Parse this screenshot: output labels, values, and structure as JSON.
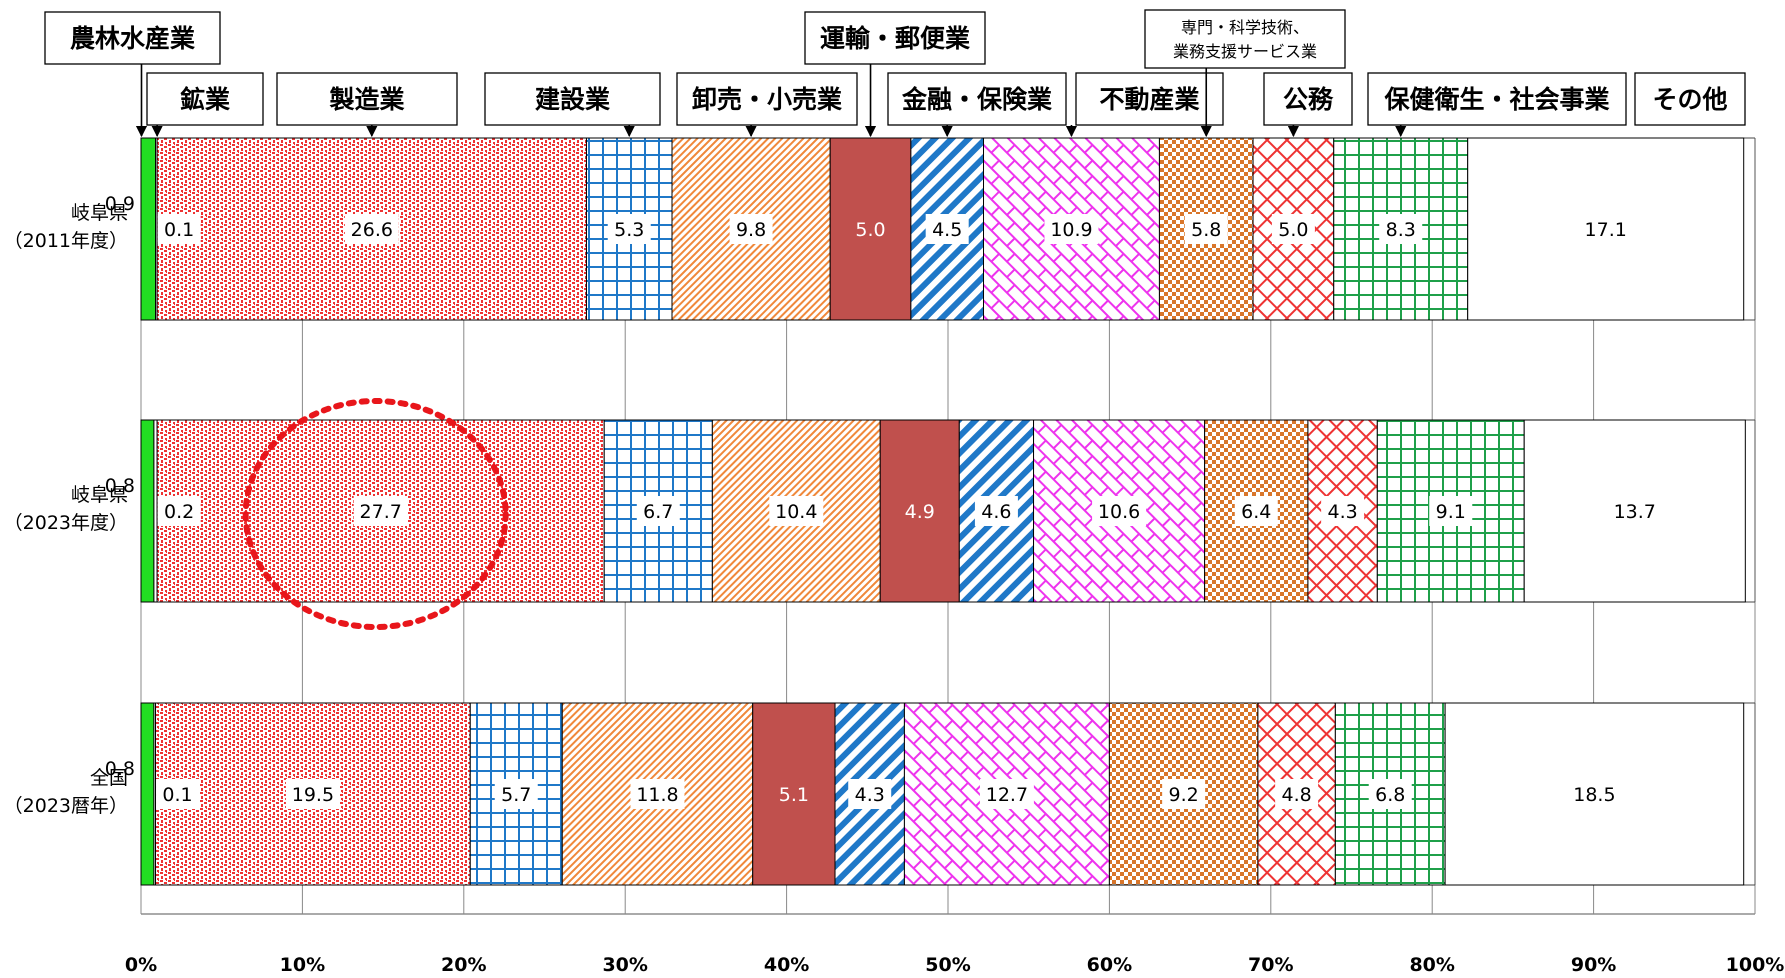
{
  "chart_data": {
    "type": "bar",
    "orientation": "horizontal",
    "stacked": true,
    "xlim": [
      0,
      100
    ],
    "x_ticks": [
      "0%",
      "10%",
      "20%",
      "30%",
      "40%",
      "50%",
      "60%",
      "70%",
      "80%",
      "90%",
      "100%"
    ],
    "categories": [
      [
        "岐阜県",
        "（2011年度）"
      ],
      [
        "岐阜県",
        "（2023年度）"
      ],
      [
        "全国",
        "（2023暦年）"
      ]
    ],
    "series": [
      {
        "name": "農林水産業",
        "values": [
          0.9,
          0.8,
          0.8
        ],
        "color": "#22dd22",
        "pattern": "solid"
      },
      {
        "name": "鉱業",
        "values": [
          0.1,
          0.2,
          0.1
        ],
        "color": "#ffffff",
        "pattern": "none"
      },
      {
        "name": "製造業",
        "values": [
          26.6,
          27.7,
          19.5
        ],
        "color": "#ee3333",
        "pattern": "dots"
      },
      {
        "name": "建設業",
        "values": [
          5.3,
          6.7,
          5.7
        ],
        "color": "#1f78c8",
        "pattern": "grid"
      },
      {
        "name": "卸売・小売業",
        "values": [
          9.8,
          10.4,
          11.8
        ],
        "color": "#f0883a",
        "pattern": "diag"
      },
      {
        "name": "運輸・郵便業",
        "values": [
          5.0,
          4.9,
          5.1
        ],
        "color": "#c0504d",
        "pattern": "solid"
      },
      {
        "name": "金融・保険業",
        "values": [
          4.5,
          4.6,
          4.3
        ],
        "color": "#1f78c8",
        "pattern": "wide-diag"
      },
      {
        "name": "不動産業",
        "values": [
          10.9,
          10.6,
          12.7
        ],
        "color": "#ee33ee",
        "pattern": "brick"
      },
      {
        "name": "専門・科学技術、業務支援サービス業",
        "values": [
          5.8,
          6.4,
          9.2
        ],
        "color": "#d9762a",
        "pattern": "checker"
      },
      {
        "name": "公務",
        "values": [
          5.0,
          4.3,
          4.8
        ],
        "color": "#ee3333",
        "pattern": "cross"
      },
      {
        "name": "保健衛生・社会事業",
        "values": [
          8.3,
          9.1,
          6.8
        ],
        "color": "#1fa04a",
        "pattern": "grid"
      },
      {
        "name": "その他",
        "values": [
          17.1,
          13.7,
          18.5
        ],
        "color": "#ffffff",
        "pattern": "none"
      }
    ],
    "value_labels": [
      [
        "0.9",
        "0.1",
        "26.6",
        "5.3",
        "9.8",
        "5.0",
        "4.5",
        "10.9",
        "5.8",
        "5.0",
        "8.3",
        "17.1"
      ],
      [
        "0.8",
        "0.2",
        "27.7",
        "6.7",
        "10.4",
        "4.9",
        "4.6",
        "10.6",
        "6.4",
        "4.3",
        "9.1",
        "13.7"
      ],
      [
        "0.8",
        "0.1",
        "19.5",
        "5.7",
        "11.8",
        "5.1",
        "4.3",
        "12.7",
        "9.2",
        "4.8",
        "6.8",
        "18.5"
      ]
    ],
    "callout_labels": [
      [
        "農林水産業"
      ],
      [
        "鉱業"
      ],
      [
        "製造業"
      ],
      [
        "建設業"
      ],
      [
        "卸売・小売業"
      ],
      [
        "運輸・郵便業"
      ],
      [
        "金融・保険業"
      ],
      [
        "不動産業"
      ],
      [
        "専門・科学技術、",
        "業務支援サービス業"
      ],
      [
        "公務"
      ],
      [
        "保健衛生・社会事業"
      ],
      [
        "その他"
      ]
    ],
    "highlight": {
      "row": 1,
      "series": "製造業",
      "shape": "dotted-circle",
      "color": "#e8161b"
    },
    "grid": true
  }
}
